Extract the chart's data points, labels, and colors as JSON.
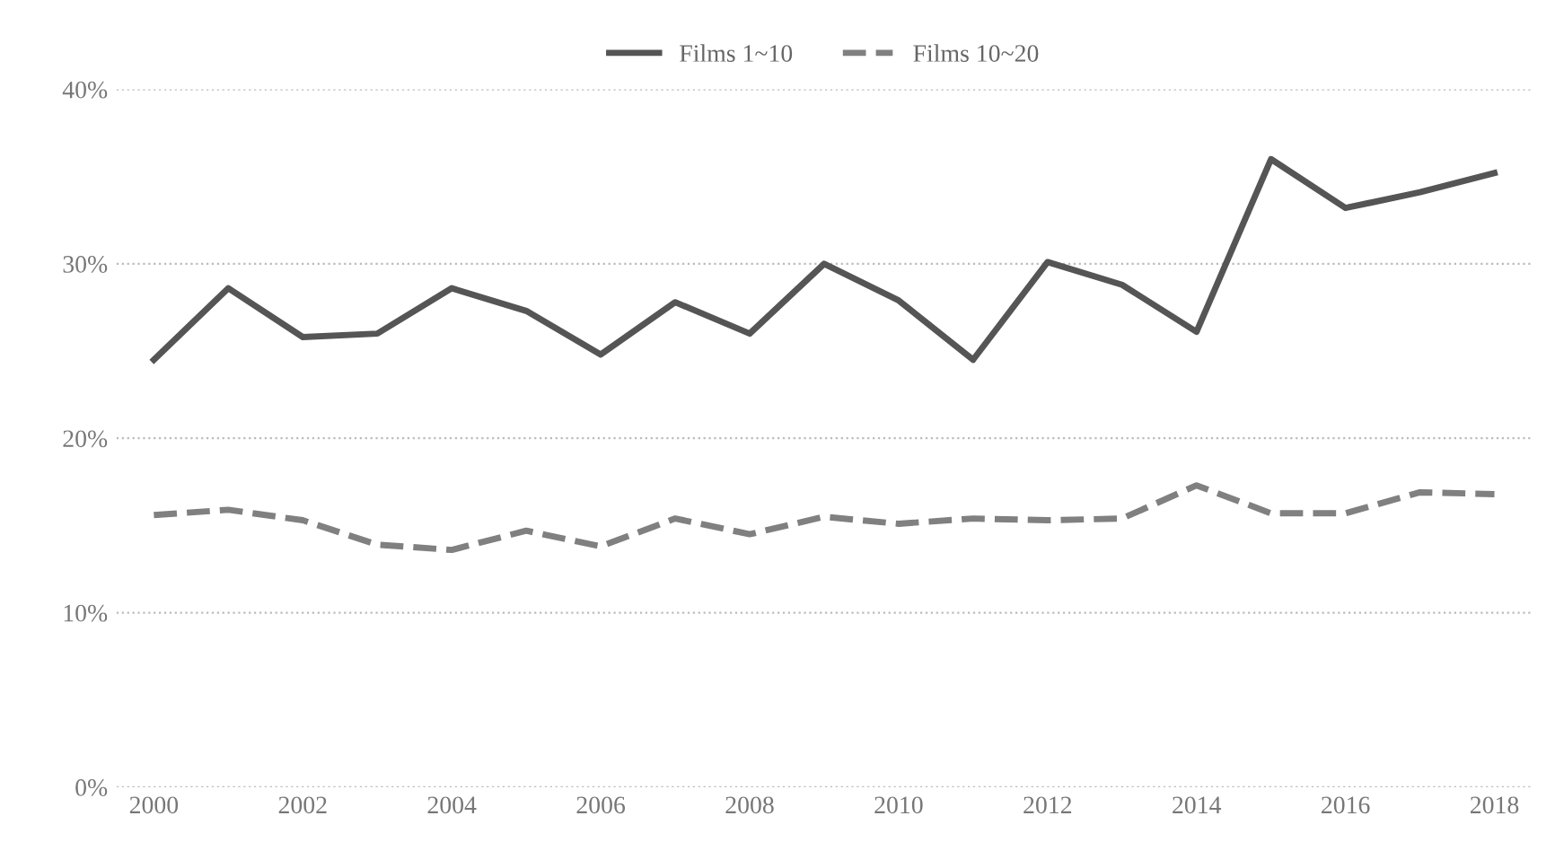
{
  "chart_data": {
    "type": "line",
    "x": [
      2000,
      2001,
      2002,
      2003,
      2004,
      2005,
      2006,
      2007,
      2008,
      2009,
      2010,
      2011,
      2012,
      2013,
      2014,
      2015,
      2016,
      2017,
      2018
    ],
    "series": [
      {
        "name": "Films 1~10",
        "color": "#555555",
        "line_style": "solid",
        "values": [
          24.5,
          28.6,
          25.8,
          26.0,
          28.6,
          27.3,
          24.8,
          27.8,
          26.0,
          30.0,
          27.9,
          24.5,
          30.1,
          28.8,
          26.1,
          36.0,
          33.2,
          34.1,
          35.2
        ]
      },
      {
        "name": "Films 10~20",
        "color": "#808080",
        "line_style": "dashed",
        "values": [
          15.6,
          15.9,
          15.3,
          13.9,
          13.6,
          14.7,
          13.8,
          15.4,
          14.5,
          15.5,
          15.1,
          15.4,
          15.3,
          15.4,
          17.3,
          15.7,
          15.7,
          16.9,
          16.8
        ]
      }
    ],
    "xlim": [
      1999.5,
      2018.5
    ],
    "xticks": [
      2000,
      2002,
      2004,
      2006,
      2008,
      2010,
      2012,
      2014,
      2016,
      2018
    ],
    "ylim": [
      0,
      40
    ],
    "yticks": [
      {
        "value": 0,
        "label": "0%"
      },
      {
        "value": 10,
        "label": "10%"
      },
      {
        "value": 20,
        "label": "20%"
      },
      {
        "value": 30,
        "label": "30%"
      },
      {
        "value": 40,
        "label": "40%"
      }
    ],
    "grid": "y",
    "legend": "top",
    "marker": "none"
  }
}
